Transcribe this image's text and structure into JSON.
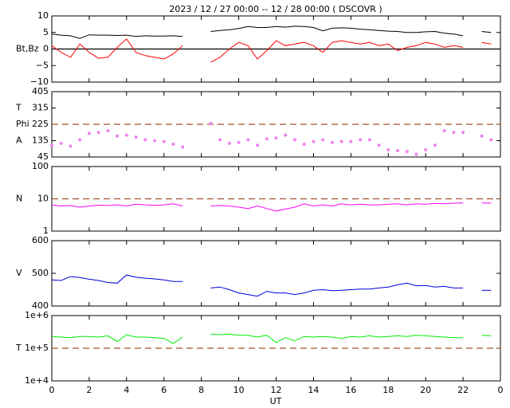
{
  "chart_data": [
    {
      "type": "line",
      "title": "2023 / 12 / 27   00:00 -- 12 / 28   00:00 ( DSCOVR )",
      "ylabel": "Bt,Bz",
      "ylim": [
        -10,
        10
      ],
      "yticks": [
        {
          "value": -10,
          "label": "−10"
        },
        {
          "value": -5,
          "label": "−5"
        },
        0,
        5,
        10
      ],
      "hline": {
        "value": 0,
        "color": "#000000",
        "style": "solid"
      },
      "series": [
        {
          "color": "#000000",
          "values": [
            4.5,
            4.2,
            4.0,
            3.2,
            4.3,
            4.2,
            4.2,
            4.1,
            4.2,
            3.8,
            4.0,
            3.9,
            3.9,
            4.0,
            3.8,
            null,
            null,
            5.3,
            5.6,
            5.8,
            6.2,
            6.8,
            6.5,
            6.5,
            6.8,
            6.6,
            6.9,
            6.8,
            6.5,
            5.5,
            6.3,
            6.4,
            6.3,
            6.0,
            5.8,
            5.6,
            5.4,
            5.3,
            5.0,
            5.0,
            5.2,
            5.3,
            4.8,
            4.5,
            4.0,
            null,
            5.3,
            5.0
          ]
        },
        {
          "color": "#ff0000",
          "values": [
            1.0,
            -1,
            -2.5,
            1.5,
            -1,
            -2.8,
            -2.5,
            0.5,
            3,
            -1,
            -2,
            -2.5,
            -3,
            -1.5,
            1,
            null,
            null,
            -4,
            -2.5,
            0,
            2,
            1,
            -3,
            -0.5,
            2.5,
            1,
            1.5,
            2,
            1,
            -1,
            2,
            2.5,
            2,
            1.5,
            2,
            1,
            1.5,
            -0.5,
            0.5,
            1,
            2,
            1.5,
            0.5,
            1,
            0.5,
            null,
            2,
            1.5
          ]
        }
      ]
    },
    {
      "type": "scatter",
      "ylabel": [
        "A",
        "Phi",
        "T"
      ],
      "ylim": [
        45,
        405
      ],
      "yticks": [
        45,
        135,
        225,
        315,
        405
      ],
      "hline": {
        "value": 225,
        "color": "#a0522d",
        "style": "dashed"
      },
      "series": [
        {
          "color": "#ee82ee",
          "values": [
            110,
            120,
            105,
            140,
            175,
            180,
            190,
            160,
            165,
            155,
            140,
            135,
            130,
            115,
            100,
            null,
            null,
            230,
            140,
            120,
            125,
            140,
            110,
            145,
            150,
            165,
            140,
            115,
            130,
            140,
            125,
            130,
            130,
            140,
            140,
            110,
            85,
            80,
            75,
            60,
            85,
            110,
            190,
            180,
            180,
            null,
            160,
            140
          ]
        }
      ]
    },
    {
      "type": "line",
      "ylabel": "N",
      "log": true,
      "ylim": [
        1,
        100
      ],
      "yticks": [
        1,
        10,
        100
      ],
      "hline": {
        "value": 10,
        "color": "#a0522d",
        "style": "dashed"
      },
      "series": [
        {
          "color": "#ff00ff",
          "values": [
            6.5,
            6,
            6.2,
            5.5,
            6,
            6.3,
            6.2,
            6.5,
            6,
            6.8,
            6.5,
            6.3,
            6.5,
            7,
            6,
            null,
            null,
            6,
            6.2,
            6,
            5.5,
            5,
            6,
            5,
            4.2,
            4.8,
            5.5,
            7,
            6,
            6.5,
            6,
            7,
            6.5,
            6.8,
            6.5,
            6.5,
            6.8,
            7,
            6.5,
            7,
            6.8,
            7.2,
            7,
            7.3,
            7.5,
            null,
            7.5,
            7.3
          ]
        }
      ]
    },
    {
      "type": "line",
      "ylabel": "V",
      "ylim": [
        400,
        600
      ],
      "yticks": [
        400,
        500,
        600
      ],
      "series": [
        {
          "color": "#0000dd",
          "values": [
            480,
            478,
            490,
            487,
            482,
            478,
            472,
            470,
            495,
            488,
            485,
            483,
            480,
            475,
            475,
            null,
            null,
            455,
            458,
            450,
            440,
            435,
            430,
            445,
            440,
            440,
            435,
            440,
            448,
            450,
            447,
            448,
            450,
            452,
            452,
            455,
            458,
            465,
            470,
            462,
            463,
            458,
            460,
            455,
            455,
            null,
            448,
            448
          ]
        }
      ]
    },
    {
      "type": "line",
      "ylabel": "T",
      "log": true,
      "xlabel": "UT",
      "ylim": [
        10000,
        1000000
      ],
      "yticks": [
        {
          "value": 10000,
          "label": "1e+4"
        },
        {
          "value": 100000,
          "label": "1e+5"
        },
        {
          "value": 1000000,
          "label": "1e+6"
        }
      ],
      "hline": {
        "value": 100000,
        "color": "#a0522d",
        "style": "dashed"
      },
      "x": [
        0,
        0.5,
        1,
        1.5,
        2,
        2.5,
        3,
        3.5,
        4,
        4.5,
        5,
        5.5,
        6,
        6.5,
        7,
        7.5,
        8,
        8.5,
        9,
        9.5,
        10,
        10.5,
        11,
        11.5,
        12,
        12.5,
        13,
        13.5,
        14,
        14.5,
        15,
        15.5,
        16,
        16.5,
        17,
        17.5,
        18,
        18.5,
        19,
        19.5,
        20,
        20.5,
        21,
        21.5,
        22,
        22.5,
        23,
        23.5
      ],
      "xlim": [
        0,
        24
      ],
      "xticks": [
        0,
        2,
        4,
        6,
        8,
        10,
        12,
        14,
        16,
        18,
        20,
        22,
        {
          "value": 24,
          "label": "0"
        }
      ],
      "series": [
        {
          "color": "#00ee00",
          "values": [
            230000,
            220000,
            210000,
            230000,
            230000,
            220000,
            240000,
            160000,
            260000,
            220000,
            220000,
            210000,
            200000,
            140000,
            220000,
            null,
            null,
            270000,
            260000,
            270000,
            250000,
            250000,
            220000,
            250000,
            150000,
            210000,
            170000,
            230000,
            220000,
            230000,
            220000,
            200000,
            230000,
            220000,
            240000,
            220000,
            230000,
            240000,
            230000,
            250000,
            240000,
            230000,
            220000,
            210000,
            210000,
            null,
            250000,
            240000
          ]
        }
      ]
    }
  ]
}
